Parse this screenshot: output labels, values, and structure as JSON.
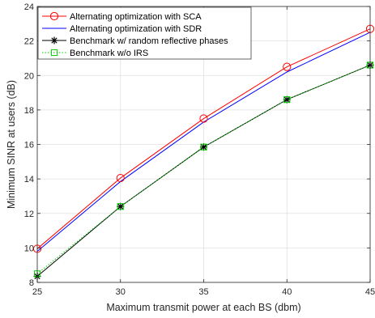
{
  "chart_data": {
    "type": "line",
    "title": "",
    "xlabel": "Maximum transmit power at each BS (dbm)",
    "ylabel": "Minimum SINR at users (dB)",
    "x": [
      25,
      30,
      35,
      40,
      45
    ],
    "xlim": [
      25,
      45
    ],
    "ylim": [
      8,
      24
    ],
    "xticks": [
      "25",
      "30",
      "35",
      "40",
      "45"
    ],
    "yticks": [
      "8",
      "10",
      "12",
      "14",
      "16",
      "18",
      "20",
      "22",
      "24"
    ],
    "grid": true,
    "legend_position": "top-left",
    "series": [
      {
        "name": "Alternating optimization with SCA",
        "values": [
          9.95,
          14.05,
          17.5,
          20.5,
          22.7
        ],
        "color": "#ff0000",
        "line": "solid",
        "marker": "circle"
      },
      {
        "name": "Alternating optimization with SDR",
        "values": [
          9.8,
          13.85,
          17.3,
          20.2,
          22.5
        ],
        "color": "#0000ff",
        "line": "solid",
        "marker": "none"
      },
      {
        "name": "Benchmark w/ random reflective phases",
        "values": [
          8.35,
          12.4,
          15.85,
          18.6,
          20.6
        ],
        "color": "#000000",
        "line": "solid",
        "marker": "asterisk"
      },
      {
        "name": "Benchmark w/o  IRS",
        "values": [
          8.5,
          12.4,
          15.85,
          18.6,
          20.6
        ],
        "color": "#00cc00",
        "line": "dotted",
        "marker": "square"
      }
    ]
  }
}
